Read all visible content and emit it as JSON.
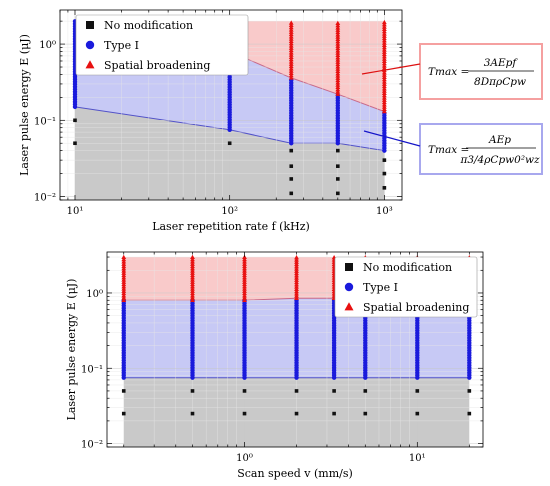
{
  "chart_data": [
    {
      "type": "scatter",
      "xscale": "log",
      "yscale": "log",
      "xlim": [
        8,
        1300
      ],
      "ylim": [
        0.009,
        2.8
      ],
      "xticks": [
        {
          "v": 10,
          "label": "10¹"
        },
        {
          "v": 100,
          "label": "10²"
        },
        {
          "v": 1000,
          "label": "10³"
        }
      ],
      "yticks": [
        {
          "v": 0.01,
          "label": "10⁻²"
        },
        {
          "v": 0.1,
          "label": "10⁻¹"
        },
        {
          "v": 1,
          "label": "10⁰"
        }
      ],
      "xlabel": "Laser repetition rate f (kHz)",
      "ylabel": "Laser pulse energy E (μJ)",
      "grid": true,
      "legend_position": "top-left",
      "x_columns": [
        10,
        100,
        250,
        500,
        1000
      ],
      "boundaries": {
        "gray_top": {
          "x": [
            10,
            100,
            250,
            500,
            1000
          ],
          "y": [
            0.15,
            0.075,
            0.05,
            0.05,
            0.04
          ]
        },
        "red_bottom": {
          "x": [
            10,
            100,
            250,
            500,
            1000
          ],
          "y": [
            2.0,
            0.8,
            0.36,
            0.22,
            0.13
          ]
        },
        "red_top": 2.0
      },
      "points": {
        "no_modification": [
          {
            "x": 10,
            "y": [
              0.1,
              0.05
            ]
          },
          {
            "x": 100,
            "y": [
              0.05
            ]
          },
          {
            "x": 250,
            "y": [
              0.04,
              0.025,
              0.017,
              0.011
            ]
          },
          {
            "x": 500,
            "y": [
              0.04,
              0.025,
              0.017,
              0.011
            ]
          },
          {
            "x": 1000,
            "y": [
              0.03,
              0.02,
              0.013
            ]
          }
        ],
        "type_i": [
          {
            "x": 10,
            "min": 0.15,
            "max": 2.0
          },
          {
            "x": 100,
            "min": 0.075,
            "max": 0.8
          },
          {
            "x": 250,
            "min": 0.05,
            "max": 0.36
          },
          {
            "x": 500,
            "min": 0.05,
            "max": 0.22
          },
          {
            "x": 1000,
            "min": 0.04,
            "max": 0.13
          }
        ],
        "spatial_broadening": [
          {
            "x": 100,
            "min": 0.8,
            "max": 2.0
          },
          {
            "x": 250,
            "min": 0.36,
            "max": 2.0
          },
          {
            "x": 500,
            "min": 0.22,
            "max": 2.0
          },
          {
            "x": 1000,
            "min": 0.13,
            "max": 2.0
          }
        ]
      },
      "legend": [
        "No modification",
        "Type I",
        "Spatial broadening"
      ],
      "annotations": {
        "red_formula": {
          "lhs": "Tmax =",
          "num": "3AEpf",
          "den": "8DπρCpw"
        },
        "blue_formula": {
          "lhs": "Tmax =",
          "num": "AEp",
          "den": "π3/4ρCpw0²wz"
        }
      }
    },
    {
      "type": "scatter",
      "xscale": "log",
      "yscale": "log",
      "xlim": [
        0.16,
        24
      ],
      "ylim": [
        0.009,
        3.5
      ],
      "xticks": [
        {
          "v": 1,
          "label": "10⁰"
        },
        {
          "v": 10,
          "label": "10¹"
        }
      ],
      "yticks": [
        {
          "v": 0.01,
          "label": "10⁻²"
        },
        {
          "v": 0.1,
          "label": "10⁻¹"
        },
        {
          "v": 1,
          "label": "10⁰"
        }
      ],
      "xlabel": "Scan speed v (mm/s)",
      "ylabel": "Laser pulse energy E (μJ)",
      "grid": true,
      "legend_position": "top-right",
      "x_columns": [
        0.2,
        0.5,
        1,
        2,
        3.3,
        5,
        10,
        20
      ],
      "boundaries": {
        "gray_top": 0.075,
        "red_bottom": {
          "x": [
            0.2,
            0.5,
            1,
            2,
            3.3,
            5,
            10,
            20
          ],
          "y": [
            0.8,
            0.8,
            0.8,
            0.85,
            0.85,
            0.85,
            0.85,
            0.85
          ]
        },
        "red_top": 3.0
      },
      "points": {
        "no_modification": [
          {
            "x": 0.2,
            "y": [
              0.05,
              0.025
            ]
          },
          {
            "x": 0.5,
            "y": [
              0.05,
              0.025
            ]
          },
          {
            "x": 1,
            "y": [
              0.05,
              0.025
            ]
          },
          {
            "x": 2,
            "y": [
              0.05,
              0.025
            ]
          },
          {
            "x": 3.3,
            "y": [
              0.05,
              0.025
            ]
          },
          {
            "x": 5,
            "y": [
              0.05,
              0.025
            ]
          },
          {
            "x": 10,
            "y": [
              0.05,
              0.025
            ]
          },
          {
            "x": 20,
            "y": [
              0.05,
              0.025
            ]
          }
        ],
        "type_i": [
          {
            "x": 0.2,
            "min": 0.075,
            "max": 0.8
          },
          {
            "x": 0.5,
            "min": 0.075,
            "max": 0.8
          },
          {
            "x": 1,
            "min": 0.075,
            "max": 0.8
          },
          {
            "x": 2,
            "min": 0.075,
            "max": 0.85
          },
          {
            "x": 3.3,
            "min": 0.075,
            "max": 0.85
          },
          {
            "x": 5,
            "min": 0.075,
            "max": 0.85
          },
          {
            "x": 10,
            "min": 0.075,
            "max": 0.85
          },
          {
            "x": 20,
            "min": 0.075,
            "max": 0.85
          }
        ],
        "spatial_broadening": [
          {
            "x": 0.2,
            "min": 0.8,
            "max": 3.0
          },
          {
            "x": 0.5,
            "min": 0.8,
            "max": 3.0
          },
          {
            "x": 1,
            "min": 0.8,
            "max": 3.0
          },
          {
            "x": 2,
            "min": 0.85,
            "max": 3.0
          },
          {
            "x": 3.3,
            "min": 0.85,
            "max": 3.0
          },
          {
            "x": 5,
            "min": 0.85,
            "max": 3.0
          },
          {
            "x": 10,
            "min": 0.85,
            "max": 3.0
          },
          {
            "x": 20,
            "min": 0.85,
            "max": 3.0
          }
        ]
      },
      "legend": [
        "No modification",
        "Type I",
        "Spatial broadening"
      ]
    }
  ],
  "colors": {
    "gray_region": "#c9c9c9",
    "blue_region": "#c7c9f5",
    "red_region": "#f9caca",
    "blue_marker": "#1a1adc",
    "red_marker": "#e81010",
    "black_marker": "#111111",
    "blue_line": "#5252c8",
    "red_line": "#c86a8a",
    "red_box": "#f5a0a0",
    "blue_box": "#a8a8ee",
    "red_arrow": "#dd1111",
    "blue_arrow": "#1414c8"
  },
  "icons": {
    "no_modification": "black-square-marker-icon",
    "type_i": "blue-circle-marker-icon",
    "spatial_broadening": "red-triangle-marker-icon"
  }
}
